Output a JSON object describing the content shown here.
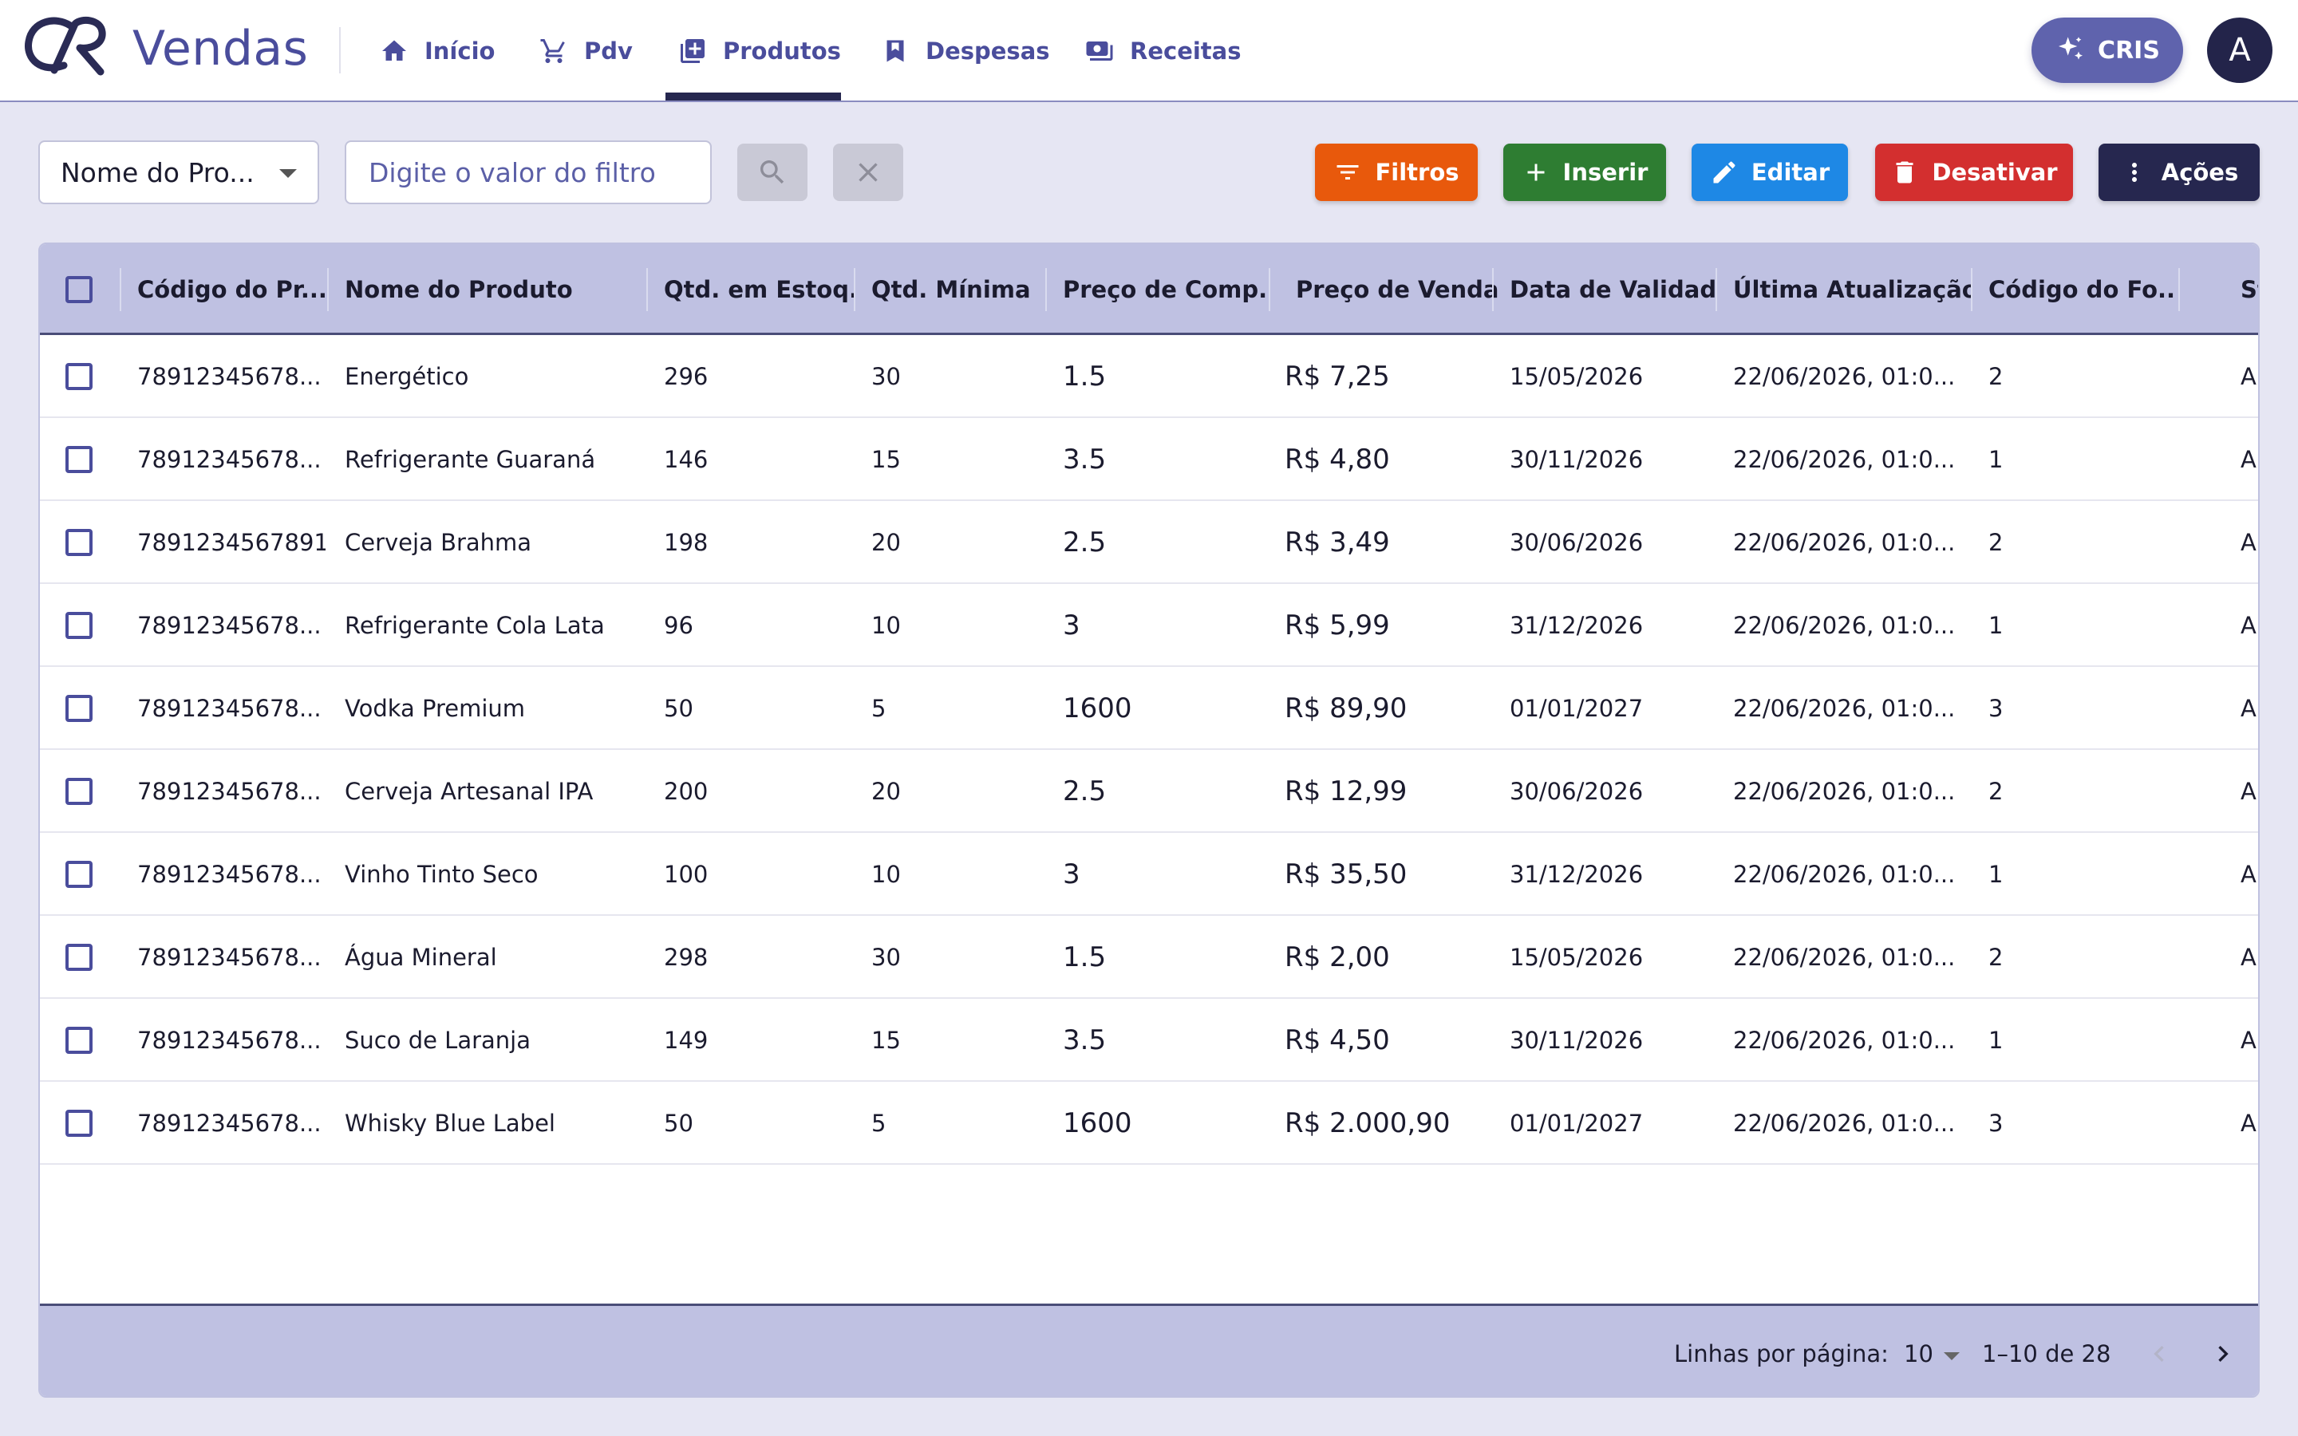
{
  "app": {
    "name": "Vendas"
  },
  "nav": [
    {
      "label": "Início",
      "icon": "home-icon"
    },
    {
      "label": "Pdv",
      "icon": "cart-icon"
    },
    {
      "label": "Produtos",
      "icon": "product-icon",
      "active": true
    },
    {
      "label": "Despesas",
      "icon": "flag-icon"
    },
    {
      "label": "Receitas",
      "icon": "money-icon"
    }
  ],
  "header": {
    "assistant_label": "CRIS",
    "avatar_initial": "A"
  },
  "toolbar": {
    "filter_field": "Nome do Pro...",
    "filter_placeholder": "Digite o valor do filtro",
    "buttons": {
      "filtros": "Filtros",
      "inserir": "Inserir",
      "editar": "Editar",
      "desativar": "Desativar",
      "acoes": "Ações"
    }
  },
  "colors": {
    "primary": "#4a4d9c",
    "filtros": "#e8590c",
    "inserir": "#2e7d32",
    "editar": "#1e88e5",
    "desativar": "#d32f2f",
    "acoes": "#26274f"
  },
  "table": {
    "columns": [
      "Código do Pr...",
      "Nome do Produto",
      "Qtd. em Estoq...",
      "Qtd. Mínima",
      "Preço de Comp...",
      "Preço de Venda",
      "Data de Validade",
      "Última Atualização",
      "Código do Fo...",
      "St"
    ],
    "rows": [
      {
        "codigo": "78912345678...",
        "nome": "Energético",
        "estoque": "296",
        "minima": "30",
        "compra": "1.5",
        "venda": "R$ 7,25",
        "validade": "15/05/2026",
        "atualizacao": "22/06/2026, 01:0...",
        "fornecedor": "2",
        "status": "A"
      },
      {
        "codigo": "78912345678...",
        "nome": "Refrigerante Guaraná",
        "estoque": "146",
        "minima": "15",
        "compra": "3.5",
        "venda": "R$ 4,80",
        "validade": "30/11/2026",
        "atualizacao": "22/06/2026, 01:0...",
        "fornecedor": "1",
        "status": "A"
      },
      {
        "codigo": "7891234567891",
        "nome": "Cerveja Brahma",
        "estoque": "198",
        "minima": "20",
        "compra": "2.5",
        "venda": "R$ 3,49",
        "validade": "30/06/2026",
        "atualizacao": "22/06/2026, 01:0...",
        "fornecedor": "2",
        "status": "A"
      },
      {
        "codigo": "78912345678...",
        "nome": "Refrigerante Cola Lata",
        "estoque": "96",
        "minima": "10",
        "compra": "3",
        "venda": "R$ 5,99",
        "validade": "31/12/2026",
        "atualizacao": "22/06/2026, 01:0...",
        "fornecedor": "1",
        "status": "A"
      },
      {
        "codigo": "78912345678...",
        "nome": "Vodka Premium",
        "estoque": "50",
        "minima": "5",
        "compra": "1600",
        "venda": "R$ 89,90",
        "validade": "01/01/2027",
        "atualizacao": "22/06/2026, 01:0...",
        "fornecedor": "3",
        "status": "A"
      },
      {
        "codigo": "78912345678...",
        "nome": "Cerveja Artesanal IPA",
        "estoque": "200",
        "minima": "20",
        "compra": "2.5",
        "venda": "R$ 12,99",
        "validade": "30/06/2026",
        "atualizacao": "22/06/2026, 01:0...",
        "fornecedor": "2",
        "status": "A"
      },
      {
        "codigo": "78912345678...",
        "nome": "Vinho Tinto Seco",
        "estoque": "100",
        "minima": "10",
        "compra": "3",
        "venda": "R$ 35,50",
        "validade": "31/12/2026",
        "atualizacao": "22/06/2026, 01:0...",
        "fornecedor": "1",
        "status": "A"
      },
      {
        "codigo": "78912345678...",
        "nome": "Água Mineral",
        "estoque": "298",
        "minima": "30",
        "compra": "1.5",
        "venda": "R$ 2,00",
        "validade": "15/05/2026",
        "atualizacao": "22/06/2026, 01:0...",
        "fornecedor": "2",
        "status": "A"
      },
      {
        "codigo": "78912345678...",
        "nome": "Suco de Laranja",
        "estoque": "149",
        "minima": "15",
        "compra": "3.5",
        "venda": "R$ 4,50",
        "validade": "30/11/2026",
        "atualizacao": "22/06/2026, 01:0...",
        "fornecedor": "1",
        "status": "A"
      },
      {
        "codigo": "78912345678...",
        "nome": "Whisky Blue Label",
        "estoque": "50",
        "minima": "5",
        "compra": "1600",
        "venda": "R$ 2.000,90",
        "validade": "01/01/2027",
        "atualizacao": "22/06/2026, 01:0...",
        "fornecedor": "3",
        "status": "A"
      }
    ]
  },
  "pagination": {
    "rows_per_page_label": "Linhas por página:",
    "rows_per_page": "10",
    "range": "1–10 de 28"
  }
}
